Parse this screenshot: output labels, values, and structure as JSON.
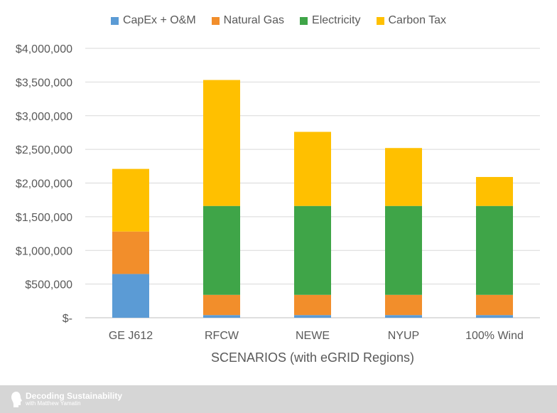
{
  "chart_data": {
    "type": "bar",
    "stacked": true,
    "categories": [
      "GE J612",
      "RFCW",
      "NEWE",
      "NYUP",
      "100% Wind"
    ],
    "series": [
      {
        "name": "CapEx + O&M",
        "color": "#5b9bd5",
        "values": [
          650000,
          40000,
          40000,
          40000,
          40000
        ]
      },
      {
        "name": "Natural Gas",
        "color": "#f28e2b",
        "values": [
          630000,
          300000,
          300000,
          300000,
          300000
        ]
      },
      {
        "name": "Electricity",
        "color": "#3fa548",
        "values": [
          0,
          1320000,
          1320000,
          1320000,
          1320000
        ]
      },
      {
        "name": "Carbon Tax",
        "color": "#ffc000",
        "values": [
          930000,
          1870000,
          1100000,
          860000,
          430000
        ]
      }
    ],
    "yticks": [
      "$-",
      "$500,000",
      "$1,000,000",
      "$1,500,000",
      "$2,000,000",
      "$2,500,000",
      "$3,000,000",
      "$3,500,000",
      "$4,000,000"
    ],
    "ylim": [
      0,
      4000000
    ],
    "xlabel": "SCENARIOS (with eGRID Regions)",
    "ylabel": "",
    "title": "",
    "legend_position": "top-center",
    "grid": true
  },
  "footer": {
    "title": "Decoding Sustainability",
    "subtitle": "with Matthew Yamatin"
  }
}
